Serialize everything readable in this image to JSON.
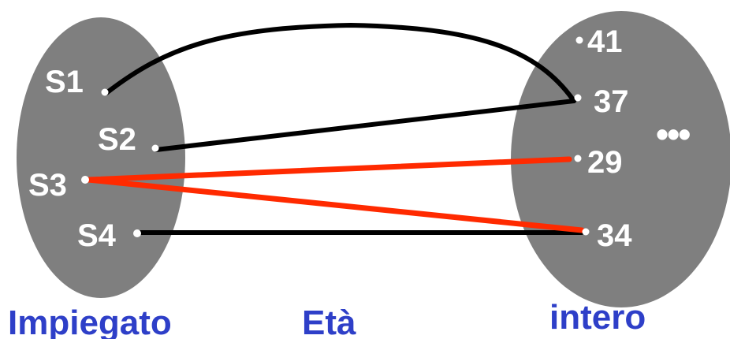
{
  "sets": {
    "domain": {
      "caption": "Impiegato",
      "elements": [
        {
          "id": "s1",
          "label": "S1"
        },
        {
          "id": "s2",
          "label": "S2"
        },
        {
          "id": "s3",
          "label": "S3"
        },
        {
          "id": "s4",
          "label": "S4"
        }
      ]
    },
    "codomain": {
      "caption": "intero",
      "elements": [
        {
          "id": "v41",
          "label": "41"
        },
        {
          "id": "v37",
          "label": "37"
        },
        {
          "id": "v29",
          "label": "29"
        },
        {
          "id": "v34",
          "label": "34"
        }
      ],
      "ellipsis": "•••"
    }
  },
  "relation": {
    "caption": "Età",
    "pairs": [
      {
        "from": "S1",
        "to": "37",
        "color": "#000000"
      },
      {
        "from": "S2",
        "to": "37",
        "color": "#000000"
      },
      {
        "from": "S3",
        "to": "29",
        "color": "#ff2a00"
      },
      {
        "from": "S3",
        "to": "34",
        "color": "#ff2a00"
      },
      {
        "from": "S4",
        "to": "34",
        "color": "#000000"
      }
    ]
  },
  "colors": {
    "set_fill": "#7f7f7f",
    "element_text": "#ffffff",
    "caption_text": "#2e3fc8",
    "normal_edge": "#000000",
    "highlight_edge": "#ff2a00"
  }
}
